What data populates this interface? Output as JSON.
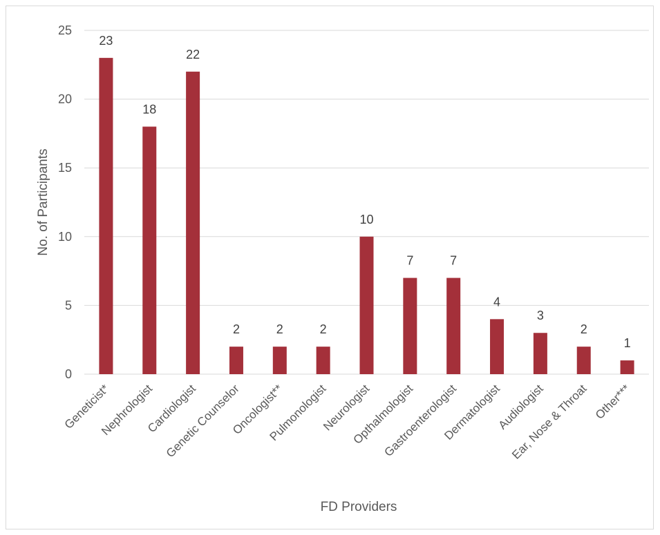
{
  "chart_data": {
    "type": "bar",
    "title": "",
    "xlabel": "FD Providers",
    "ylabel": "No. of Participants",
    "ylim": [
      0,
      25
    ],
    "yticks": [
      0,
      5,
      10,
      15,
      20,
      25
    ],
    "grid": true,
    "legend": "none",
    "bar_color": "#A4303A",
    "categories": [
      "Geneticist*",
      "Nephrologist",
      "Cardiologist",
      "Genetic Counselor",
      "Oncologist**",
      "Pulmonologist",
      "Neurologist",
      "Opthalmologist",
      "Gastroenterologist",
      "Dermatologist",
      "Audiologist",
      "Ear, Nose & Throat",
      "Other***"
    ],
    "values": [
      23,
      18,
      22,
      2,
      2,
      2,
      10,
      7,
      7,
      4,
      3,
      2,
      1
    ]
  }
}
